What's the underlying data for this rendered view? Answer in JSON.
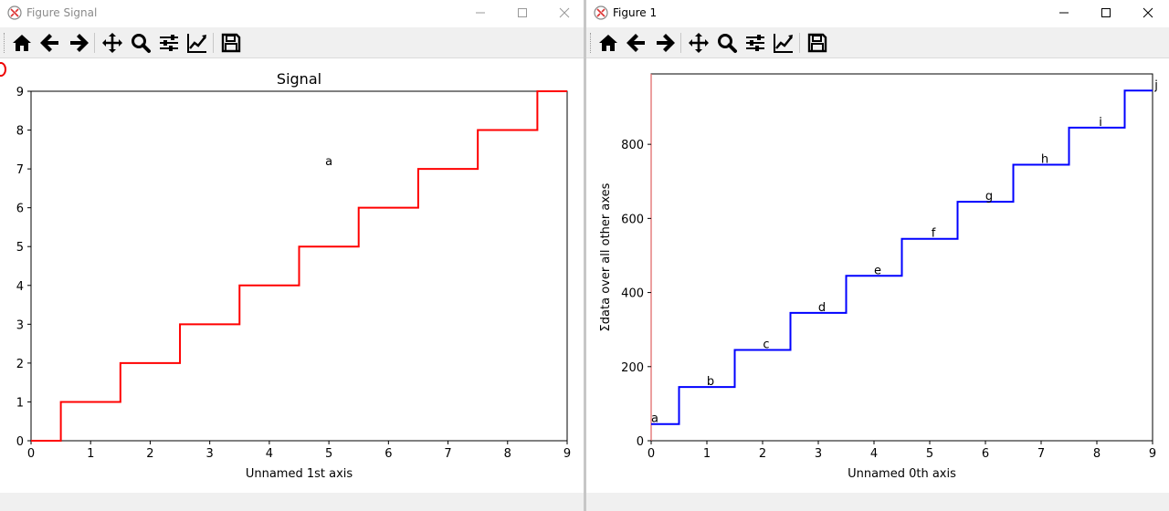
{
  "windows": [
    {
      "title": "Figure  Signal",
      "plot": {
        "title": "Signal",
        "xlabel": "Unnamed 1st axis",
        "ylabel": "",
        "annotation": "a"
      }
    },
    {
      "title": "Figure 1",
      "plot": {
        "title": "",
        "xlabel": "Unnamed 0th axis",
        "ylabel": "Σdata over all other axes"
      }
    }
  ],
  "toolbar": {
    "icons": [
      "home-icon",
      "back-arrow-icon",
      "forward-arrow-icon",
      "pan-icon",
      "zoom-icon",
      "configure-subplots-icon",
      "edit-axes-icon",
      "save-icon"
    ]
  },
  "colors": {
    "signal_line": "#ff0000",
    "sum_line": "#0000ff",
    "axes_frame": "#000000",
    "left_spine_fig1": "#e06060"
  },
  "chart_data": [
    {
      "type": "line",
      "drawstyle": "steps-mid",
      "title": "Signal",
      "xlabel": "Unnamed 1st axis",
      "ylabel": "",
      "x": [
        0,
        1,
        2,
        3,
        4,
        5,
        6,
        7,
        8,
        9
      ],
      "series": [
        {
          "values": [
            0,
            1,
            2,
            3,
            4,
            5,
            6,
            7,
            8,
            9
          ]
        }
      ],
      "xlim": [
        0,
        9
      ],
      "ylim": [
        0,
        9
      ],
      "xticks": [
        0,
        1,
        2,
        3,
        4,
        5,
        6,
        7,
        8,
        9
      ],
      "yticks": [
        0,
        1,
        2,
        3,
        4,
        5,
        6,
        7,
        8,
        9
      ],
      "annotations": [
        {
          "text": "a",
          "x": 5,
          "y": 7.1
        }
      ],
      "grid": false
    },
    {
      "type": "line",
      "drawstyle": "steps-mid",
      "title": "",
      "xlabel": "Unnamed 0th axis",
      "ylabel": "Σdata over all other axes",
      "x": [
        0,
        1,
        2,
        3,
        4,
        5,
        6,
        7,
        8,
        9
      ],
      "series": [
        {
          "values": [
            45,
            145,
            245,
            345,
            445,
            545,
            645,
            745,
            845,
            945
          ]
        }
      ],
      "xlim": [
        0,
        9
      ],
      "ylim": [
        0,
        990
      ],
      "xticks": [
        0,
        1,
        2,
        3,
        4,
        5,
        6,
        7,
        8,
        9
      ],
      "yticks": [
        0,
        200,
        400,
        600,
        800
      ],
      "point_labels": [
        "a",
        "b",
        "c",
        "d",
        "e",
        "f",
        "g",
        "h",
        "i",
        "j"
      ],
      "grid": false
    }
  ]
}
